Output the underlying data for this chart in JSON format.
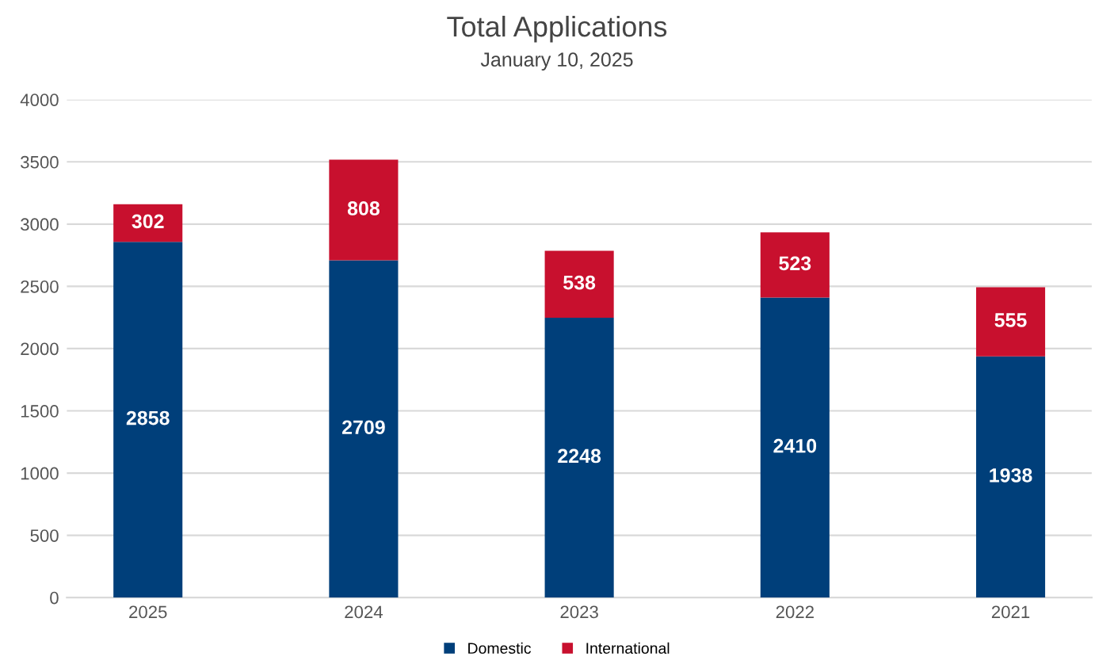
{
  "chart_data": {
    "type": "bar",
    "title": "Total Applications",
    "subtitle": "January 10, 2025",
    "categories": [
      "2025",
      "2024",
      "2023",
      "2022",
      "2021"
    ],
    "series": [
      {
        "name": "Domestic",
        "color": "#003f7a",
        "values": [
          2858,
          2709,
          2248,
          2410,
          1938
        ]
      },
      {
        "name": "International",
        "color": "#c8102e",
        "values": [
          302,
          808,
          538,
          523,
          555
        ]
      }
    ],
    "stacked": true,
    "data_labels": true,
    "ylim": [
      0,
      4000
    ],
    "yticks": [
      0,
      500,
      1000,
      1500,
      2000,
      2500,
      3000,
      3500,
      4000
    ],
    "grid": "y",
    "legend": "bottom"
  }
}
